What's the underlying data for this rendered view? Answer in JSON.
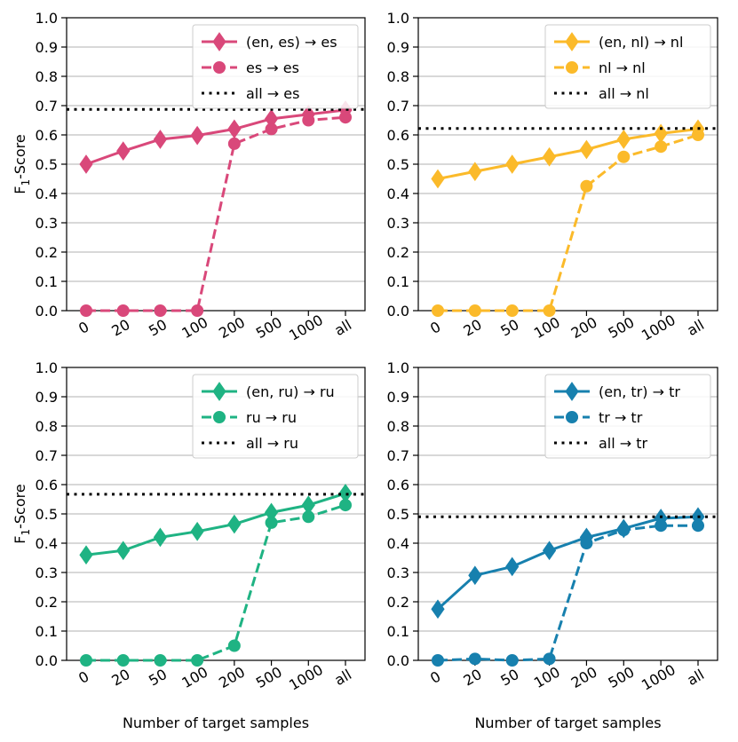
{
  "chart_data": [
    {
      "type": "line",
      "categories": [
        "0",
        "20",
        "50",
        "100",
        "200",
        "500",
        "1000",
        "all"
      ],
      "ylabel": "F",
      "ylabel_sub": "1",
      "ylabel_suffix": "-Score",
      "xlabel": "",
      "ylim": [
        0,
        1.0
      ],
      "yticks": [
        "0.0",
        "0.1",
        "0.2",
        "0.3",
        "0.4",
        "0.5",
        "0.6",
        "0.7",
        "0.8",
        "0.9",
        "1.0"
      ],
      "grid": "horizontal",
      "legend_position": "top-right",
      "color": "#d9487a",
      "series": [
        {
          "name": "(en, es) → es",
          "style": "solid",
          "marker": "diamond",
          "values": [
            0.5,
            0.545,
            0.585,
            0.598,
            0.62,
            0.655,
            0.67,
            0.685
          ]
        },
        {
          "name": "es → es",
          "style": "dashed",
          "marker": "circle",
          "values": [
            0.0,
            0.0,
            0.0,
            0.0,
            0.57,
            0.62,
            0.65,
            0.66
          ]
        },
        {
          "name": "all → es",
          "style": "dotted",
          "marker": "none",
          "constant": 0.687
        }
      ]
    },
    {
      "type": "line",
      "categories": [
        "0",
        "20",
        "50",
        "100",
        "200",
        "500",
        "1000",
        "all"
      ],
      "ylabel": "",
      "ylabel_sub": "",
      "ylabel_suffix": "",
      "xlabel": "",
      "ylim": [
        0,
        1.0
      ],
      "yticks": [
        "0.0",
        "0.1",
        "0.2",
        "0.3",
        "0.4",
        "0.5",
        "0.6",
        "0.7",
        "0.8",
        "0.9",
        "1.0"
      ],
      "grid": "horizontal",
      "legend_position": "top-right",
      "color": "#fbba2a",
      "series": [
        {
          "name": "(en, nl) → nl",
          "style": "solid",
          "marker": "diamond",
          "values": [
            0.45,
            0.475,
            0.5,
            0.525,
            0.55,
            0.585,
            0.605,
            0.62
          ]
        },
        {
          "name": "nl → nl",
          "style": "dashed",
          "marker": "circle",
          "values": [
            0.0,
            0.0,
            0.0,
            0.0,
            0.425,
            0.525,
            0.56,
            0.6
          ]
        },
        {
          "name": "all → nl",
          "style": "dotted",
          "marker": "none",
          "constant": 0.622
        }
      ]
    },
    {
      "type": "line",
      "categories": [
        "0",
        "20",
        "50",
        "100",
        "200",
        "500",
        "1000",
        "all"
      ],
      "ylabel": "F",
      "ylabel_sub": "1",
      "ylabel_suffix": "-Score",
      "xlabel": "Number of target samples",
      "ylim": [
        0,
        1.0
      ],
      "yticks": [
        "0.0",
        "0.1",
        "0.2",
        "0.3",
        "0.4",
        "0.5",
        "0.6",
        "0.7",
        "0.8",
        "0.9",
        "1.0"
      ],
      "grid": "horizontal",
      "legend_position": "top-right",
      "color": "#1fb383",
      "series": [
        {
          "name": "(en, ru) → ru",
          "style": "solid",
          "marker": "diamond",
          "values": [
            0.36,
            0.375,
            0.42,
            0.44,
            0.465,
            0.505,
            0.53,
            0.57
          ]
        },
        {
          "name": "ru → ru",
          "style": "dashed",
          "marker": "circle",
          "values": [
            0.0,
            0.0,
            0.0,
            0.0,
            0.05,
            0.47,
            0.49,
            0.53
          ]
        },
        {
          "name": "all → ru",
          "style": "dotted",
          "marker": "none",
          "constant": 0.567
        }
      ]
    },
    {
      "type": "line",
      "categories": [
        "0",
        "20",
        "50",
        "100",
        "200",
        "500",
        "1000",
        "all"
      ],
      "ylabel": "",
      "ylabel_sub": "",
      "ylabel_suffix": "",
      "xlabel": "Number of target samples",
      "ylim": [
        0,
        1.0
      ],
      "yticks": [
        "0.0",
        "0.1",
        "0.2",
        "0.3",
        "0.4",
        "0.5",
        "0.6",
        "0.7",
        "0.8",
        "0.9",
        "1.0"
      ],
      "grid": "horizontal",
      "legend_position": "top-right",
      "color": "#1780ae",
      "series": [
        {
          "name": "(en, tr) → tr",
          "style": "solid",
          "marker": "diamond",
          "values": [
            0.175,
            0.29,
            0.32,
            0.375,
            0.42,
            0.45,
            0.485,
            0.49
          ]
        },
        {
          "name": "tr → tr",
          "style": "dashed",
          "marker": "circle",
          "values": [
            0.0,
            0.005,
            0.0,
            0.005,
            0.4,
            0.445,
            0.46,
            0.46
          ]
        },
        {
          "name": "all → tr",
          "style": "dotted",
          "marker": "none",
          "constant": 0.49
        }
      ]
    }
  ]
}
